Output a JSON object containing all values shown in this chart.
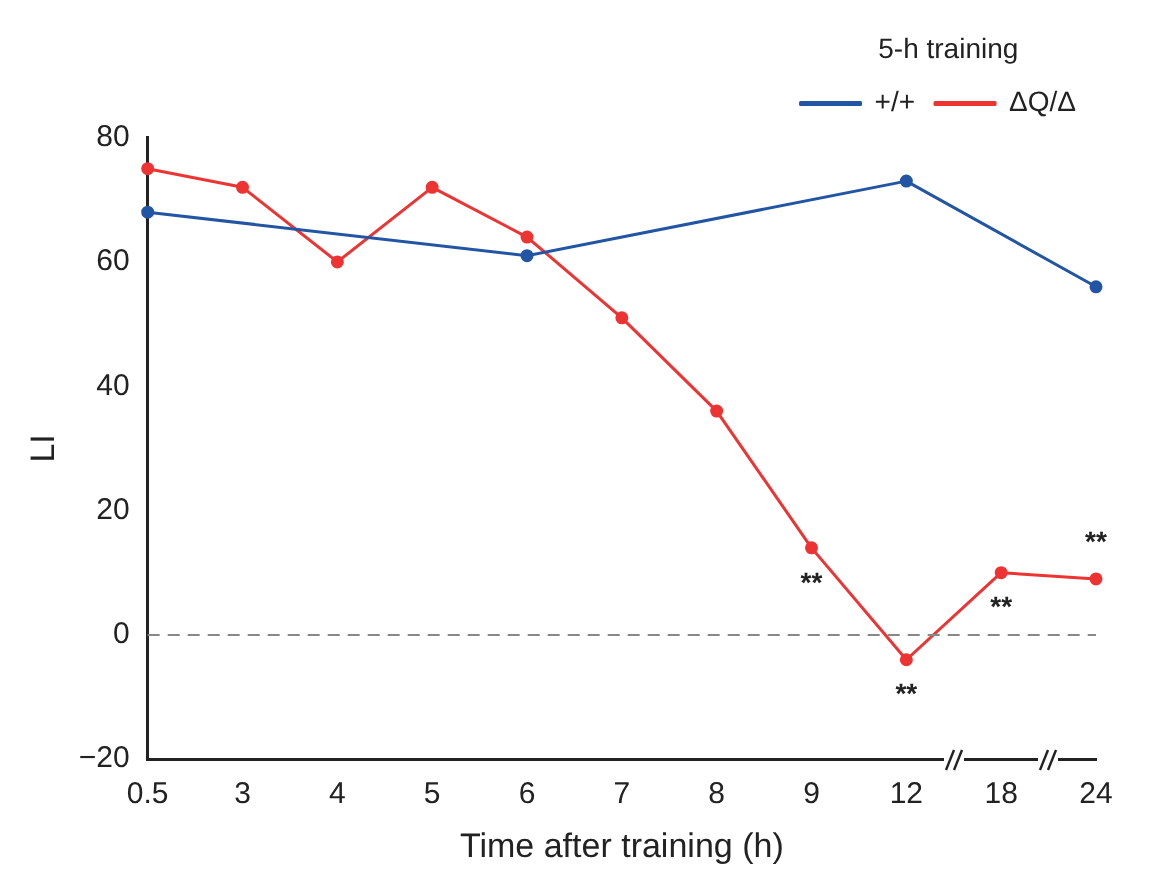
{
  "chart_data": {
    "type": "line",
    "xlabel": "Time after training (h)",
    "ylabel": "LI",
    "legend_title": "5-h training",
    "categories": [
      "0.5",
      "3",
      "4",
      "5",
      "6",
      "7",
      "8",
      "9",
      "12",
      "18",
      "24"
    ],
    "series": [
      {
        "name": "+/+",
        "color": "#2255a4",
        "values": [
          68,
          null,
          null,
          null,
          61,
          null,
          null,
          null,
          73,
          null,
          56
        ]
      },
      {
        "name": "ΔQ/Δ",
        "color": "#ee3333",
        "values": [
          75,
          72,
          60,
          72,
          64,
          51,
          36,
          14,
          -4,
          10,
          9
        ]
      }
    ],
    "ylim": [
      -20,
      80
    ],
    "yticks": [
      -20,
      0,
      20,
      40,
      60,
      80
    ],
    "grid": false,
    "legend": "top right",
    "marker": "circle",
    "line_style": "solid",
    "ref_lines": [
      {
        "axis": "y",
        "value": 0,
        "color": "#888888",
        "line_style": "dashed"
      }
    ],
    "annotations": [
      {
        "text": "**",
        "x": "9",
        "y": 14
      },
      {
        "text": "**",
        "x": "12",
        "y": -4
      },
      {
        "text": "**",
        "x": "18",
        "y": 10
      },
      {
        "text": "**",
        "x": "24",
        "y": 9
      }
    ]
  }
}
